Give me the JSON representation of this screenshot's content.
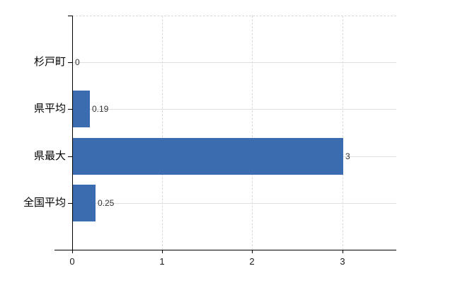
{
  "chart_data": {
    "type": "bar",
    "orientation": "horizontal",
    "title": "",
    "xlabel": "",
    "ylabel": "",
    "categories": [
      "杉戸町",
      "県平均",
      "県最大",
      "全国平均"
    ],
    "values": [
      0,
      0.19,
      3,
      0.25
    ],
    "value_labels": [
      "0",
      "0.19",
      "3",
      "0.25"
    ],
    "x_tick_labels": [
      "0",
      "1",
      "2",
      "3"
    ],
    "x_tick_values": [
      0,
      1,
      2,
      3
    ],
    "xlim": [
      0,
      3.6
    ],
    "grid": true,
    "legend_position": "none",
    "bar_color": "#3b6cb0"
  },
  "colors": {
    "background": "#ffffff",
    "bar_fill": "#3b6cb0",
    "axis_line": "#000000",
    "h_gridline": "#dde1dd",
    "v_gridline": "#d9d9d9",
    "category_label": "#000000",
    "value_label": "#333333",
    "tick_label": "#1a1a1a"
  }
}
